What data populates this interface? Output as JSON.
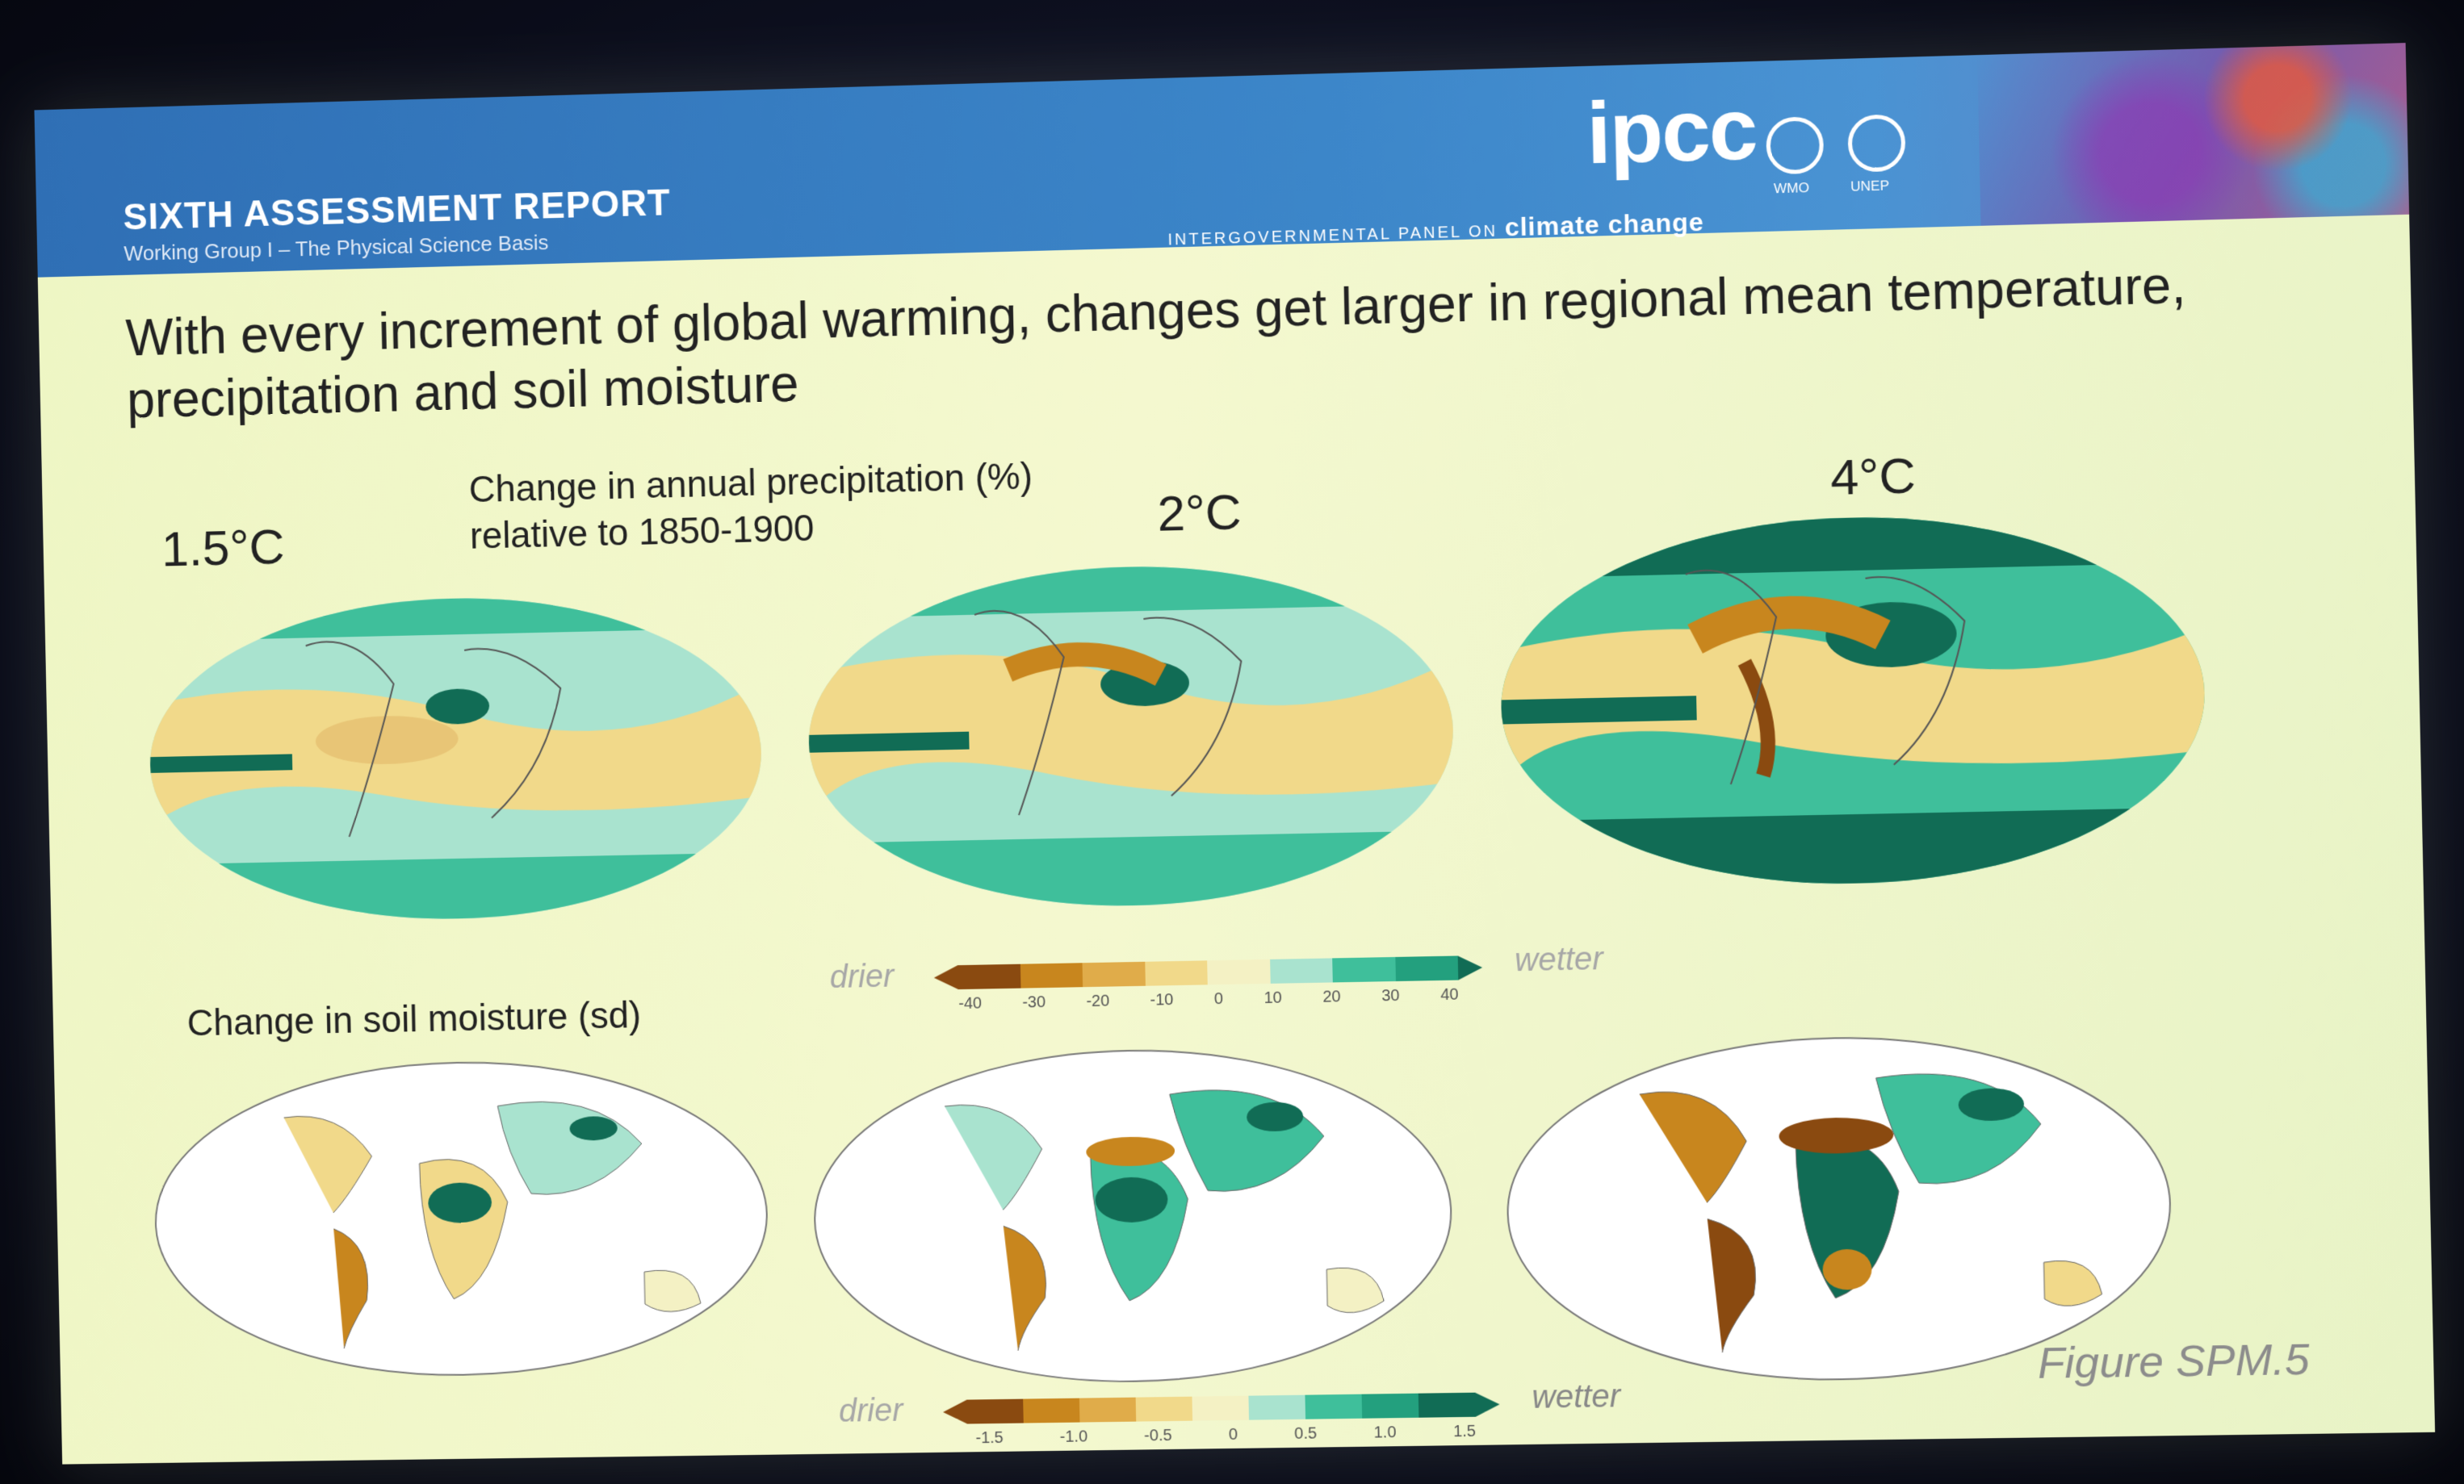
{
  "header": {
    "report_title": "SIXTH ASSESSMENT REPORT",
    "report_subtitle": "Working Group I – The Physical Science Basis",
    "logo_text": "ipcc",
    "org_full_prefix": "INTERGOVERNMENTAL PANEL ON",
    "org_full_suffix": "climate change",
    "partner_1": "WMO",
    "partner_2": "UNEP"
  },
  "headline": "With every increment of global warming, changes get larger in regional mean temperature, precipitation and soil moisture",
  "scenarios": [
    "1.5°C",
    "2°C",
    "4°C"
  ],
  "precip": {
    "title_line1": "Change in annual precipitation (%)",
    "title_line2": "relative to 1850-1900",
    "colorbar": {
      "low_label": "drier",
      "high_label": "wetter",
      "ticks": [
        "-40",
        "-30",
        "-20",
        "-10",
        "0",
        "10",
        "20",
        "30",
        "40"
      ]
    }
  },
  "soil": {
    "title": "Change in soil moisture (sd)",
    "colorbar": {
      "low_label": "drier",
      "high_label": "wetter",
      "ticks": [
        "-1.5",
        "-1.0",
        "-0.5",
        "0",
        "0.5",
        "1.0",
        "1.5"
      ]
    }
  },
  "figure_label": "Figure SPM.5",
  "colors": {
    "dry_strong": "#8a4a10",
    "dry_mid": "#c8861e",
    "dry_light": "#f1d98a",
    "neutral": "#f4f1c4",
    "wet_light": "#a9e3cf",
    "wet_mid": "#3fbf9b",
    "wet_strong": "#116c55"
  }
}
